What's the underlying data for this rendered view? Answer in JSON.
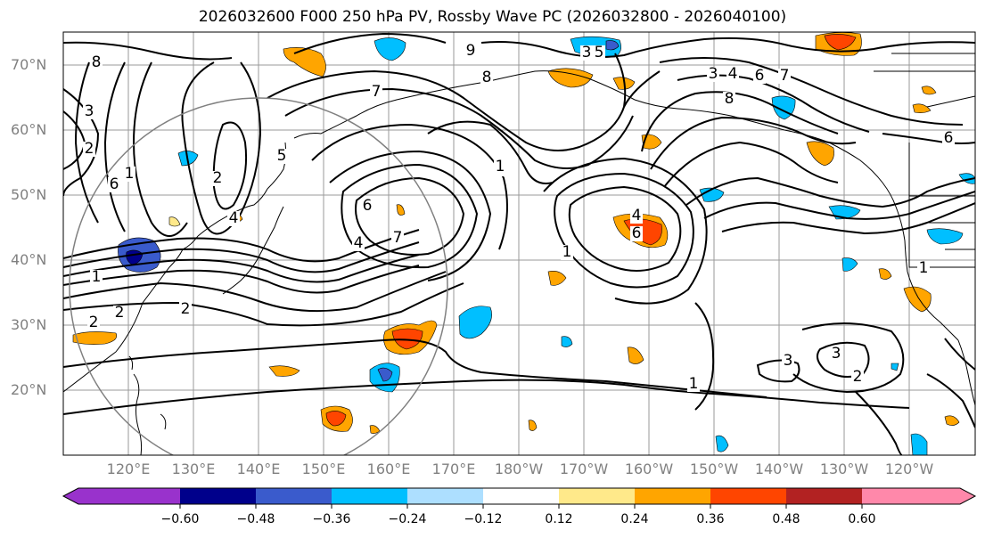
{
  "title": "2026032600 F000 250 hPa PV, Rossby Wave PC (2026032800 - 2026040100)",
  "lat_labels": [
    "70°N",
    "60°N",
    "50°N",
    "40°N",
    "30°N",
    "20°N"
  ],
  "lon_labels": [
    "120°E",
    "130°E",
    "140°E",
    "150°E",
    "160°E",
    "170°E",
    "180°W",
    "170°W",
    "160°W",
    "150°W",
    "140°W",
    "130°W",
    "120°W"
  ],
  "colorbar": {
    "colors": [
      "#9932CC",
      "#00008B",
      "#3A5BCC",
      "#00BFFF",
      "#ADDFFF",
      "#FFFFFF",
      "#FFE98A",
      "#FFA500",
      "#FF4500",
      "#B22222",
      "#FF88AA"
    ],
    "tick_labels": [
      "−0.60",
      "−0.48",
      "−0.36",
      "−0.24",
      "−0.12",
      "0.12",
      "0.24",
      "0.36",
      "0.48",
      "0.60"
    ]
  },
  "contour_labels": [
    "8",
    "3",
    "2",
    "6",
    "1",
    "7",
    "2",
    "4",
    "6",
    "7",
    "1",
    "9",
    "8",
    "8",
    "3",
    "4",
    "6",
    "7",
    "4",
    "6",
    "1",
    "2",
    "3",
    "3",
    "1",
    "2",
    "1",
    "2",
    "2",
    "4",
    "1",
    "5",
    "5",
    "3",
    "6",
    "1"
  ]
}
